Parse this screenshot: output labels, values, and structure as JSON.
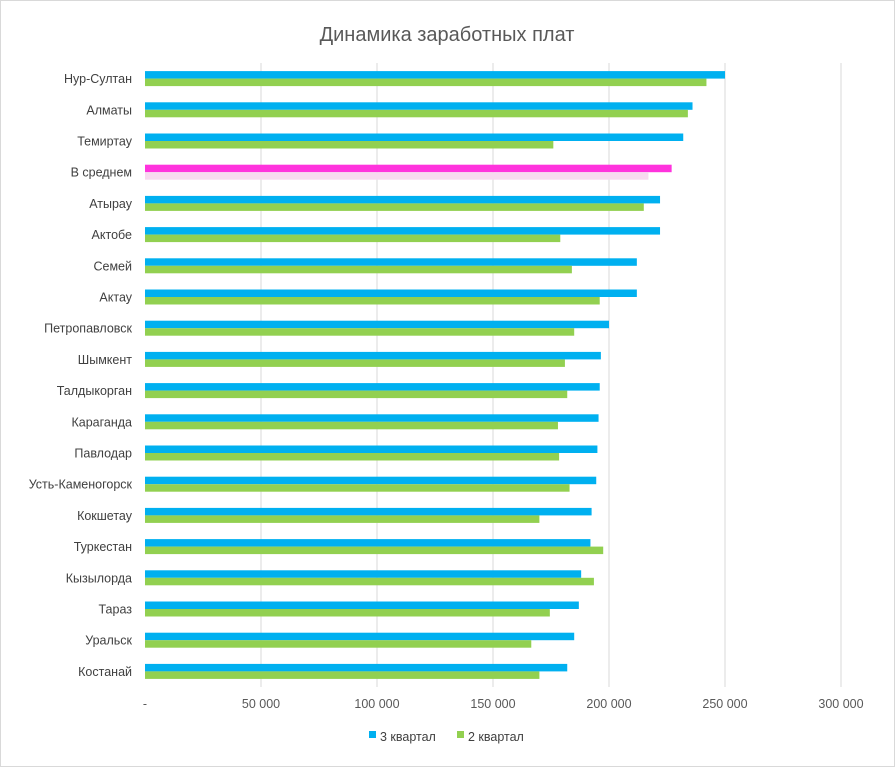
{
  "chart_data": {
    "type": "bar",
    "orientation": "horizontal",
    "title": "Динамика заработных плат",
    "xlabel": "",
    "ylabel": "",
    "xlim": [
      0,
      300000
    ],
    "x_ticks": [
      0,
      50000,
      100000,
      150000,
      200000,
      250000,
      300000
    ],
    "x_tick_labels": [
      "-",
      "50 000",
      "100 000",
      "150 000",
      "200 000",
      "250 000",
      "300 000"
    ],
    "grid": "vertical",
    "legend_position": "bottom",
    "categories": [
      "Нур-Султан",
      "Алматы",
      "Темиртау",
      "В среднем",
      "Атырау",
      "Актобе",
      "Семей",
      "Актау",
      "Петропавловск",
      "Шымкент",
      "Талдыкорган",
      "Караганда",
      "Павлодар",
      "Усть-Каменогорск",
      "Кокшетау",
      "Туркестан",
      "Кызылорда",
      "Тараз",
      "Уральск",
      "Костанай"
    ],
    "highlight_category": "В среднем",
    "series": [
      {
        "name": "3 квартал",
        "color": "#00b0f0",
        "highlight_color": "#ff33dd",
        "values": [
          250000,
          236000,
          232000,
          227000,
          222000,
          222000,
          212000,
          212000,
          200000,
          196500,
          196000,
          195500,
          195000,
          194500,
          192500,
          192000,
          188000,
          187000,
          185000,
          182000
        ]
      },
      {
        "name": "2 квартал",
        "color": "#92d050",
        "highlight_color": "#f7d9ef",
        "values": [
          242000,
          234000,
          176000,
          217000,
          215000,
          179000,
          184000,
          196000,
          185000,
          181000,
          182000,
          178000,
          178500,
          183000,
          170000,
          197500,
          193500,
          174500,
          166500,
          170000
        ]
      }
    ]
  }
}
